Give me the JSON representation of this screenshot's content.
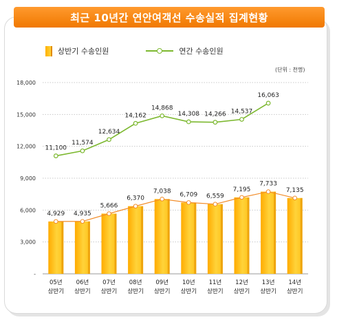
{
  "header": {
    "title": "최근 10년간 연안여객선 수송실적 집계현황"
  },
  "legend": {
    "bar_label": "상반기 수송인원",
    "line_label": "연간 수송인원"
  },
  "unit_label": "(단위 : 천명)",
  "colors": {
    "title_bar": "#f58a14",
    "bar": "#ffc21a",
    "bar_dark": "#e08a00",
    "bar_marker": "#f28c28",
    "line": "#7cb82f"
  },
  "chart_data": {
    "type": "bar",
    "categories": [
      "05년 상반기",
      "06년 상반기",
      "07년 상반기",
      "08년 상반기",
      "09년 상반기",
      "10년 상반기",
      "11년 상반기",
      "12년 상반기",
      "13년 상반기",
      "14년 상반기"
    ],
    "category_years": [
      "05년",
      "06년",
      "07년",
      "08년",
      "09년",
      "10년",
      "11년",
      "12년",
      "13년",
      "14년"
    ],
    "category_sub": "상반기",
    "series": [
      {
        "name": "상반기 수송인원",
        "type": "bar",
        "values": [
          4929,
          4935,
          5666,
          6370,
          7038,
          6709,
          6559,
          7195,
          7733,
          7135
        ]
      },
      {
        "name": "연간 수송인원",
        "type": "line",
        "values": [
          11100,
          11574,
          12634,
          14162,
          14868,
          14308,
          14266,
          14537,
          16063,
          null
        ]
      }
    ],
    "value_labels_bar": [
      "4,929",
      "4,935",
      "5,666",
      "6,370",
      "7,038",
      "6,709",
      "6,559",
      "7,195",
      "7,733",
      "7,135"
    ],
    "value_labels_line": [
      "11,100",
      "11,574",
      "12,634",
      "14,162",
      "14,868",
      "14,308",
      "14,266",
      "14,537",
      "16,063"
    ],
    "ylim": [
      0,
      18000
    ],
    "yticks": [
      0,
      3000,
      6000,
      9000,
      12000,
      15000,
      18000
    ],
    "ytick_labels": [
      "-",
      "3,000",
      "6,000",
      "9,000",
      "12,000",
      "15,000",
      "18,000"
    ],
    "grid": true,
    "legend_position": "top-left"
  }
}
